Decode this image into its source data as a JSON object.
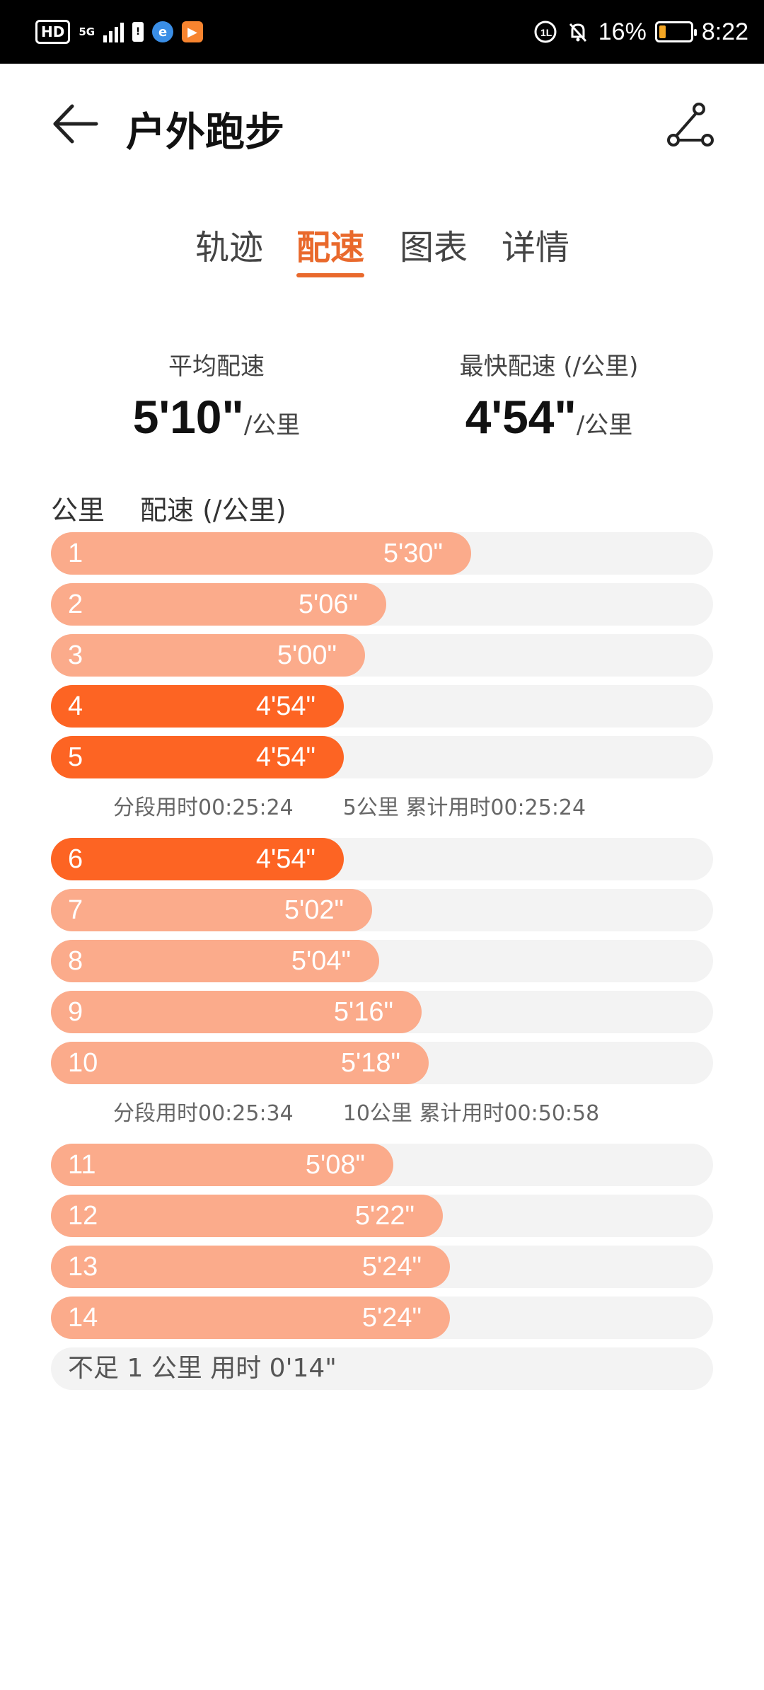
{
  "status_bar": {
    "hd": "HD",
    "network": "5G",
    "battery_percent": "16%",
    "time": "8:22"
  },
  "header": {
    "title": "户外跑步"
  },
  "tabs": [
    {
      "label": "轨迹",
      "active": false
    },
    {
      "label": "配速",
      "active": true
    },
    {
      "label": "图表",
      "active": false
    },
    {
      "label": "详情",
      "active": false
    }
  ],
  "summary": {
    "avg_label": "平均配速",
    "avg_value": "5'10\"",
    "avg_unit": "/公里",
    "fast_label": "最快配速 (/公里)",
    "fast_value": "4'54\"",
    "fast_unit": "/公里"
  },
  "list_header": {
    "km_label": "公里",
    "pace_label": "配速 (/公里)"
  },
  "splits": [
    {
      "km": "1",
      "pace": "5'30\"",
      "seconds": 330,
      "fastest": false
    },
    {
      "km": "2",
      "pace": "5'06\"",
      "seconds": 306,
      "fastest": false
    },
    {
      "km": "3",
      "pace": "5'00\"",
      "seconds": 300,
      "fastest": false
    },
    {
      "km": "4",
      "pace": "4'54\"",
      "seconds": 294,
      "fastest": true
    },
    {
      "km": "5",
      "pace": "4'54\"",
      "seconds": 294,
      "fastest": true
    },
    {
      "km": "6",
      "pace": "4'54\"",
      "seconds": 294,
      "fastest": true
    },
    {
      "km": "7",
      "pace": "5'02\"",
      "seconds": 302,
      "fastest": false
    },
    {
      "km": "8",
      "pace": "5'04\"",
      "seconds": 304,
      "fastest": false
    },
    {
      "km": "9",
      "pace": "5'16\"",
      "seconds": 316,
      "fastest": false
    },
    {
      "km": "10",
      "pace": "5'18\"",
      "seconds": 318,
      "fastest": false
    },
    {
      "km": "11",
      "pace": "5'08\"",
      "seconds": 308,
      "fastest": false
    },
    {
      "km": "12",
      "pace": "5'22\"",
      "seconds": 322,
      "fastest": false
    },
    {
      "km": "13",
      "pace": "5'24\"",
      "seconds": 324,
      "fastest": false
    },
    {
      "km": "14",
      "pace": "5'24\"",
      "seconds": 324,
      "fastest": false
    }
  ],
  "segments": [
    {
      "after_index": 4,
      "segment_time": "分段用时00:25:24",
      "cumulative": "5公里 累计用时00:25:24"
    },
    {
      "after_index": 9,
      "segment_time": "分段用时00:25:34",
      "cumulative": "10公里 累计用时00:50:58"
    }
  ],
  "remainder": "不足 1 公里 用时 0'14\"",
  "colors": {
    "accent": "#e9692c",
    "bar_normal": "#fbab8b",
    "bar_fastest": "#fd6423",
    "track": "#f3f3f3"
  }
}
